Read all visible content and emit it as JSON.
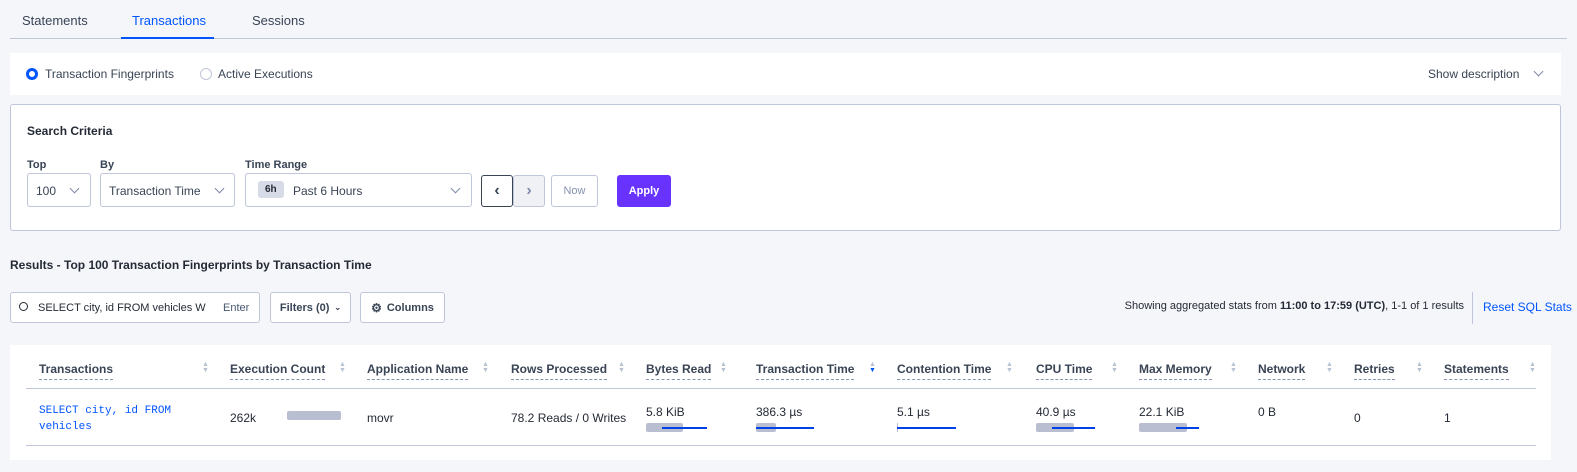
{
  "tabs": [
    {
      "label": "Statements"
    },
    {
      "label": "Transactions",
      "active": true
    },
    {
      "label": "Sessions"
    }
  ],
  "view": {
    "options": [
      {
        "label": "Transaction Fingerprints",
        "selected": true
      },
      {
        "label": "Active Executions",
        "selected": false
      }
    ],
    "show_description": "Show description"
  },
  "search_criteria": {
    "title": "Search Criteria",
    "top_label": "Top",
    "top_value": "100",
    "by_label": "By",
    "by_value": "Transaction Time",
    "time_label": "Time Range",
    "time_badge": "6h",
    "time_value": "Past 6 Hours",
    "now": "Now",
    "apply": "Apply"
  },
  "results": {
    "title": "Results - Top 100 Transaction Fingerprints by Transaction Time",
    "search_value": "SELECT city, id FROM vehicles W",
    "enter": "Enter",
    "filters": "Filters (0)",
    "columns": "Columns",
    "summary_prefix": "Showing aggregated stats from ",
    "summary_range": "11:00 to 17:59",
    "summary_tz": "(UTC)",
    "summary_suffix": ", 1-1 of 1 results",
    "reset": "Reset SQL Stats"
  },
  "table": {
    "headers": [
      "Transactions",
      "Execution Count",
      "Application Name",
      "Rows Processed",
      "Bytes Read",
      "Transaction Time",
      "Contention Time",
      "CPU Time",
      "Max Memory",
      "Network",
      "Retries",
      "Statements"
    ],
    "sorted_column": "Transaction Time",
    "sort_direction": "descending",
    "rows": [
      {
        "transaction": "SELECT city, id FROM vehicles",
        "execution_count": "262k",
        "application": "movr",
        "rows_processed": "78.2 Reads / 0 Writes",
        "bytes_read": "5.8 KiB",
        "transaction_time": "386.3 µs",
        "contention_time": "5.1 µs",
        "cpu_time": "40.9 µs",
        "max_memory": "22.1 KiB",
        "network": "0 B",
        "retries": "0",
        "statements": "1"
      }
    ]
  },
  "colors": {
    "accent": "#0055ff",
    "apply": "#6933ff",
    "bar": "#b9bfd0"
  }
}
